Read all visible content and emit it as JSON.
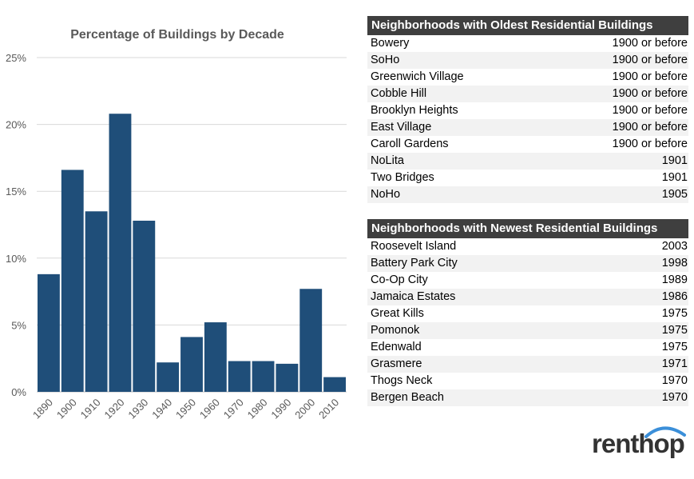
{
  "chart_data": {
    "type": "bar",
    "title": "Percentage of Buildings by Decade",
    "xlabel": "",
    "ylabel": "",
    "categories": [
      "1890",
      "1900",
      "1910",
      "1920",
      "1930",
      "1940",
      "1950",
      "1960",
      "1970",
      "1980",
      "1990",
      "2000",
      "2010"
    ],
    "values": [
      8.8,
      16.6,
      13.5,
      20.8,
      12.8,
      2.2,
      4.1,
      5.2,
      2.3,
      2.3,
      2.1,
      7.7,
      1.1
    ],
    "yticks": [
      "0%",
      "5%",
      "10%",
      "15%",
      "20%",
      "25%"
    ],
    "ylim": [
      0,
      25
    ],
    "grid": true,
    "bar_color": "#1f4e79"
  },
  "oldest": {
    "title": "Neighborhoods with Oldest Residential Buildings",
    "rows": [
      {
        "name": "Bowery",
        "value": "1900 or before"
      },
      {
        "name": "SoHo",
        "value": "1900 or before"
      },
      {
        "name": "Greenwich Village",
        "value": "1900 or before"
      },
      {
        "name": "Cobble Hill",
        "value": "1900 or before"
      },
      {
        "name": "Brooklyn Heights",
        "value": "1900 or before"
      },
      {
        "name": "East Village",
        "value": "1900 or before"
      },
      {
        "name": "Caroll Gardens",
        "value": "1900 or before"
      },
      {
        "name": "NoLita",
        "value": "1901"
      },
      {
        "name": "Two Bridges",
        "value": "1901"
      },
      {
        "name": "NoHo",
        "value": "1905"
      }
    ]
  },
  "newest": {
    "title": "Neighborhoods with Newest Residential Buildings",
    "rows": [
      {
        "name": "Roosevelt Island",
        "value": "2003"
      },
      {
        "name": "Battery Park City",
        "value": "1998"
      },
      {
        "name": "Co-Op City",
        "value": "1989"
      },
      {
        "name": "Jamaica Estates",
        "value": "1986"
      },
      {
        "name": "Great Kills",
        "value": "1975"
      },
      {
        "name": "Pomonok",
        "value": "1975"
      },
      {
        "name": "Edenwald",
        "value": "1975"
      },
      {
        "name": "Grasmere",
        "value": "1971"
      },
      {
        "name": "Thogs Neck",
        "value": "1970"
      },
      {
        "name": "Bergen Beach",
        "value": "1970"
      }
    ]
  },
  "logo": {
    "text": "renthop",
    "color": "#333333",
    "accent": "#3b8fd9"
  }
}
